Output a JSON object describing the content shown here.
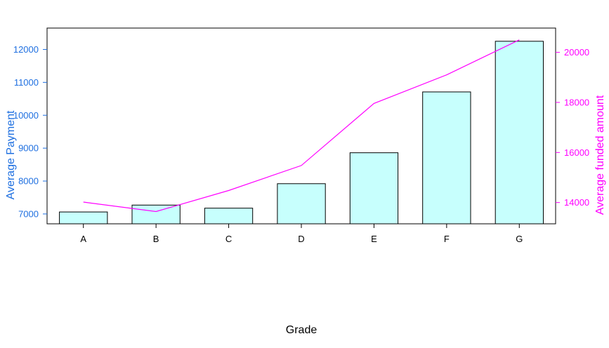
{
  "chart_data": {
    "type": "bar",
    "categories": [
      "A",
      "B",
      "C",
      "D",
      "E",
      "F",
      "G"
    ],
    "xlabel": "Grade",
    "bars": {
      "axis": "left",
      "values": [
        7060,
        7270,
        7175,
        7920,
        8860,
        10710,
        12250
      ],
      "fill": "#C7FFFD",
      "stroke": "#000000"
    },
    "line": {
      "type": "line",
      "axis": "right",
      "values": [
        14020,
        13640,
        14480,
        15480,
        17960,
        19100,
        20500
      ],
      "color": "#FF00FF"
    },
    "y_left": {
      "label": "Average Payment",
      "range": [
        6700,
        12650
      ],
      "ticks": [
        7000,
        8000,
        9000,
        10000,
        11000,
        12000
      ],
      "color": "#1E6FE0"
    },
    "y_right": {
      "label": "Average funded amount",
      "range": [
        13150,
        20970
      ],
      "ticks": [
        14000,
        16000,
        18000,
        20000
      ],
      "color": "#FF00FF"
    },
    "grid": false,
    "legend": "none"
  }
}
